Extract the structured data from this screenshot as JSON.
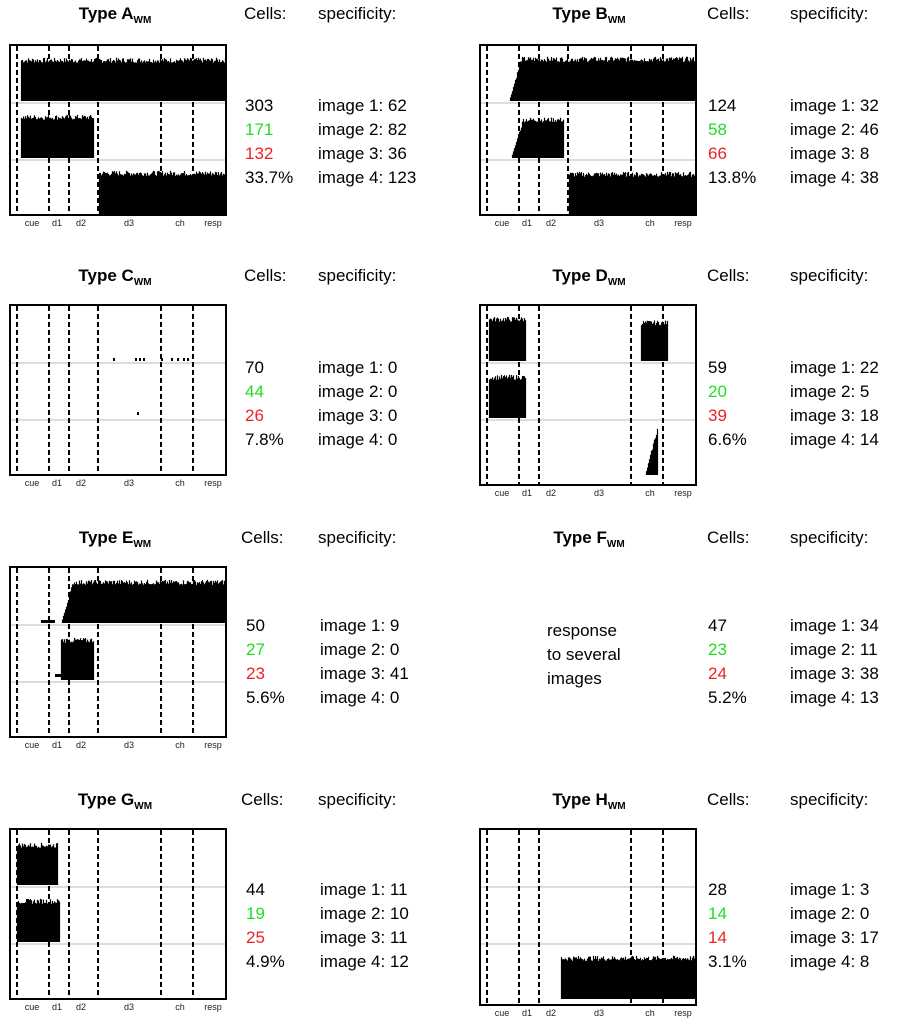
{
  "colors": {
    "total": "#000000",
    "group1": "#22dd22",
    "group2": "#ee2222"
  },
  "headers": {
    "cells": "Cells:",
    "specificity": "specificity:"
  },
  "title_sub": "WM",
  "epoch_labels": [
    "cue",
    "d1",
    "d2",
    "d3",
    "ch",
    "resp"
  ],
  "panels": [
    {
      "letter": "A",
      "title": "Type A",
      "cells": [
        "303",
        "171",
        "132",
        "33.7%"
      ],
      "specificity": [
        "image 1: 62",
        "image 2: 82",
        "image 3: 36",
        "image 4: 123"
      ]
    },
    {
      "letter": "B",
      "title": "Type B",
      "cells": [
        "124",
        "58",
        "66",
        "13.8%"
      ],
      "specificity": [
        "image 1: 32",
        "image 2: 46",
        "image 3: 8",
        "image 4: 38"
      ]
    },
    {
      "letter": "C",
      "title": "Type C",
      "cells": [
        "70",
        "44",
        "26",
        "7.8%"
      ],
      "specificity": [
        "image 1: 0",
        "image 2: 0",
        "image 3: 0",
        "image 4: 0"
      ]
    },
    {
      "letter": "D",
      "title": "Type D",
      "cells": [
        "59",
        "20",
        "39",
        "6.6%"
      ],
      "specificity": [
        "image 1: 22",
        "image 2: 5",
        "image 3: 18",
        "image 4: 14"
      ]
    },
    {
      "letter": "E",
      "title": "Type E",
      "cells": [
        "50",
        "27",
        "23",
        "5.6%"
      ],
      "specificity": [
        "image 1: 9",
        "image 2: 0",
        "image 3: 41",
        "image 4: 0"
      ]
    },
    {
      "letter": "F",
      "title": "Type F",
      "cells": [
        "47",
        "23",
        "24",
        "5.2%"
      ],
      "specificity": [
        "image 1: 34",
        "image 2: 11",
        "image 3: 38",
        "image 4: 13"
      ],
      "note": [
        "response",
        "to several",
        "images"
      ]
    },
    {
      "letter": "G",
      "title": "Type G",
      "cells": [
        "44",
        "19",
        "25",
        "4.9%"
      ],
      "specificity": [
        "image 1: 11",
        "image 2: 10",
        "image 3: 11",
        "image 4: 12"
      ]
    },
    {
      "letter": "H",
      "title": "Type H",
      "cells": [
        "28",
        "14",
        "14",
        "3.1%"
      ],
      "specificity": [
        "image 1: 3",
        "image 2: 0",
        "image 3: 17",
        "image 4: 8"
      ]
    }
  ]
}
